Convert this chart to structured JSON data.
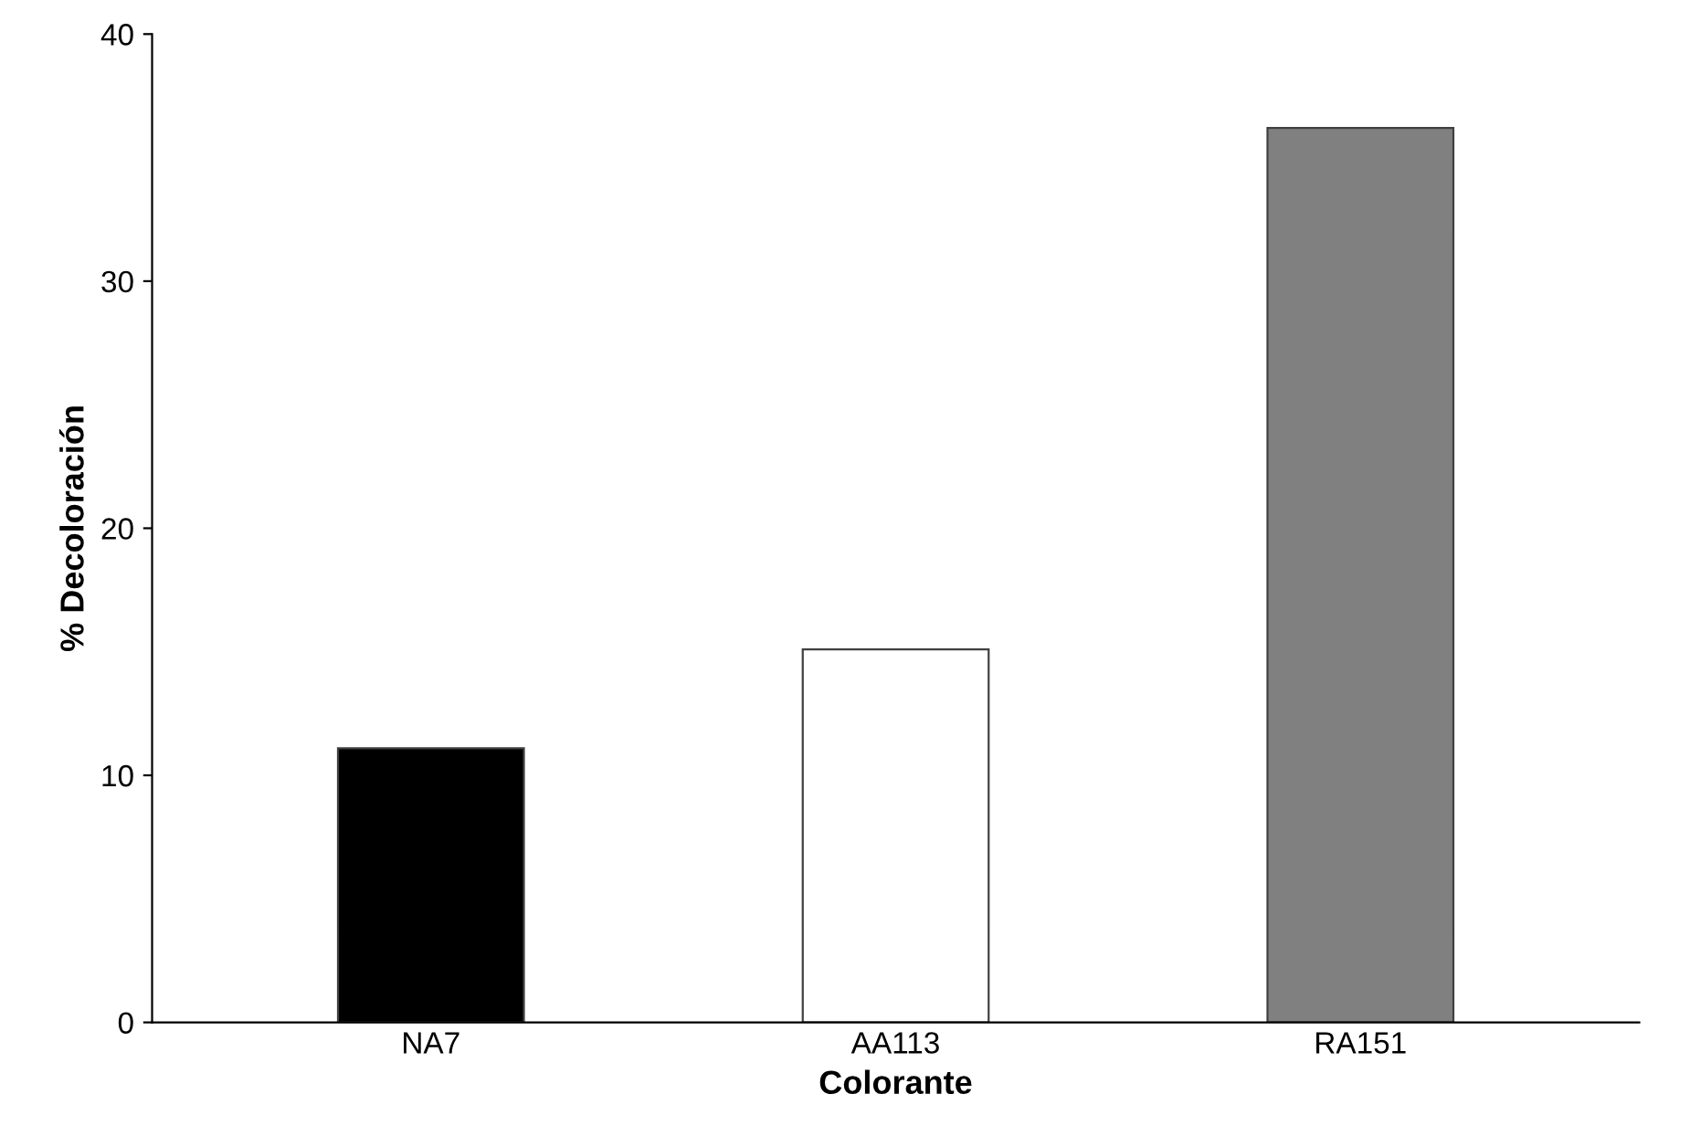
{
  "chart_data": {
    "type": "bar",
    "xlabel": "Colorante",
    "ylabel": "% Decoloración",
    "categories": [
      "NA7",
      "AA113",
      "RA151"
    ],
    "values": [
      11.1,
      15.1,
      36.2
    ],
    "colors": [
      "#000000",
      "#ffffff",
      "#808080"
    ],
    "ylim": [
      0,
      40
    ],
    "yticks": [
      0,
      10,
      20,
      30,
      40
    ],
    "grid": false,
    "legend": false
  }
}
